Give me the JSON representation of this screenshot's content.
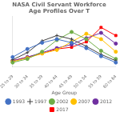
{
  "chart_data": {
    "type": "line",
    "title": "NASA Civil Servant Workforce Age Profiles Over T",
    "xlabel": "Age Group",
    "categories": [
      "25 to 29",
      "30 to 34",
      "35 to 39",
      "40 to 44",
      "45 to 49",
      "50 to 54",
      "55 to 59",
      "60 to 64"
    ],
    "series": [
      {
        "name": "1993",
        "color": "#4472c4",
        "marker": "circle",
        "values": [
          5.5,
          10.0,
          13.5,
          15.5,
          13.5,
          10.5,
          6.0,
          2.5
        ]
      },
      {
        "name": "1997",
        "color": "#404040",
        "marker": "plus",
        "values": [
          4.0,
          8.0,
          14.5,
          17.5,
          15.5,
          11.5,
          7.0,
          3.5
        ]
      },
      {
        "name": "2002",
        "color": "#70ad47",
        "marker": "circle",
        "values": [
          2.5,
          4.5,
          8.5,
          15.0,
          19.5,
          15.5,
          9.0,
          4.5
        ]
      },
      {
        "name": "2007",
        "color": "#ffc000",
        "marker": "circle",
        "values": [
          3.0,
          5.0,
          7.5,
          9.5,
          14.0,
          18.5,
          15.5,
          8.5
        ]
      },
      {
        "name": "2012",
        "color": "#7030a0",
        "marker": "circle",
        "values": [
          3.5,
          5.5,
          8.0,
          10.5,
          12.5,
          16.0,
          19.0,
          13.0
        ]
      },
      {
        "name": "2017",
        "color": "#ff0000",
        "marker": "square",
        "values": [
          3.5,
          5.5,
          7.5,
          10.0,
          11.0,
          14.0,
          22.0,
          17.5
        ]
      }
    ],
    "ylim": [
      0,
      28
    ],
    "grid": false,
    "legend": "bottom",
    "tick_labels": "x"
  }
}
